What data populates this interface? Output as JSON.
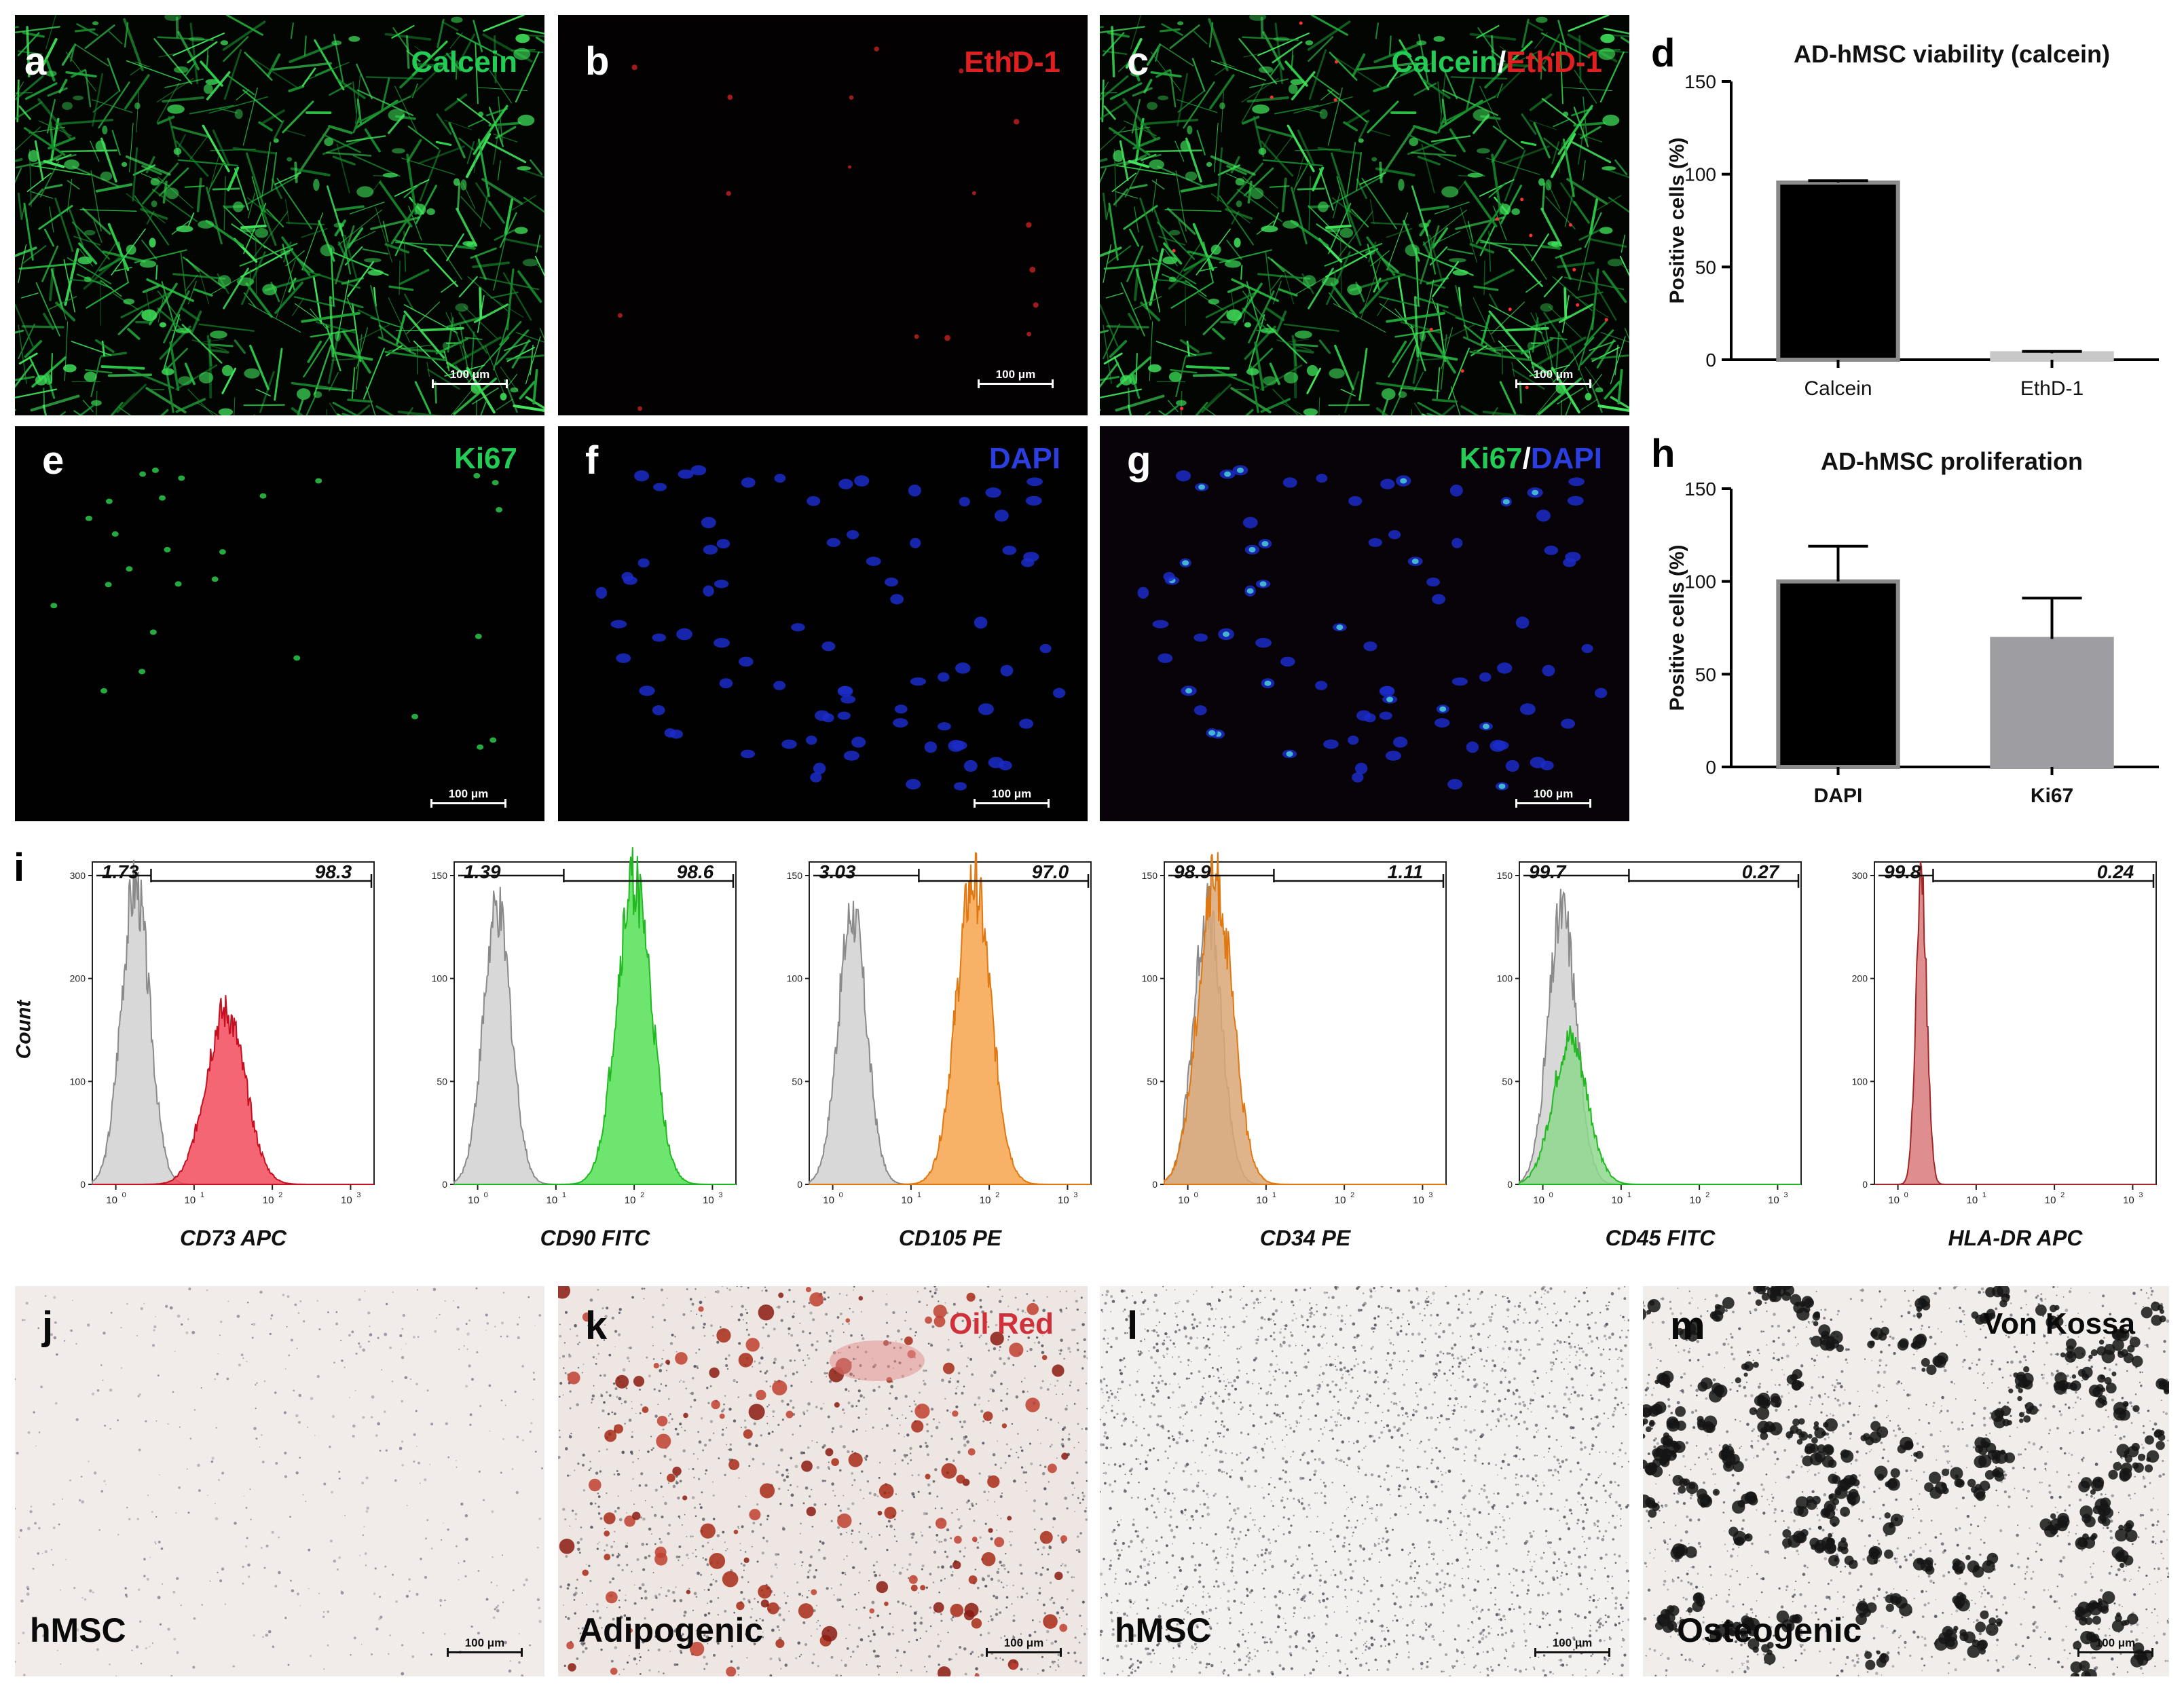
{
  "panels": {
    "a": {
      "letter": "a",
      "stain": [
        {
          "text": "Calcein",
          "color": "#22cc55"
        }
      ],
      "scale": "100 μm"
    },
    "b": {
      "letter": "b",
      "stain": [
        {
          "text": "EthD-1",
          "color": "#e02020"
        }
      ],
      "scale": "100 μm"
    },
    "c": {
      "letter": "c",
      "stain": [
        {
          "text": "Calcein",
          "color": "#22cc55"
        },
        {
          "text": "/",
          "color": "#ffffff"
        },
        {
          "text": "EthD-1",
          "color": "#e02020"
        }
      ],
      "scale": "100 μm"
    },
    "e": {
      "letter": "e",
      "stain": [
        {
          "text": "Ki67",
          "color": "#22cc55"
        }
      ],
      "scale": "100 μm"
    },
    "f": {
      "letter": "f",
      "stain": [
        {
          "text": "DAPI",
          "color": "#2b3fe0"
        }
      ],
      "scale": "100 μm"
    },
    "g": {
      "letter": "g",
      "stain": [
        {
          "text": "Ki67",
          "color": "#22cc55"
        },
        {
          "text": "/",
          "color": "#ffffff"
        },
        {
          "text": "DAPI",
          "color": "#2b3fe0"
        }
      ],
      "scale": "100 μm"
    },
    "j": {
      "letter": "j",
      "sample": "hMSC",
      "scale": "100 μm"
    },
    "k": {
      "letter": "k",
      "sample": "Adipogenic",
      "stain": "Oil Red",
      "stain_color": "#d0303a",
      "scale": "100 μm"
    },
    "l": {
      "letter": "l",
      "sample": "hMSC",
      "scale": "100 μm"
    },
    "m": {
      "letter": "m",
      "sample": "Osteogenic",
      "stain": "Von Kossa",
      "stain_color": "#0a0a0a",
      "scale": "100 μm"
    }
  },
  "chart_data": [
    {
      "panel": "d",
      "type": "bar",
      "title": "AD-hMSC viability (calcein)",
      "ylabel": "Positive cells (%)",
      "xlabel": "",
      "ylim": [
        0,
        150
      ],
      "yticks": [
        0,
        50,
        100,
        150
      ],
      "categories": [
        "Calcein",
        "EthD-1"
      ],
      "values": [
        95.5,
        3.5
      ],
      "errors": [
        1,
        1
      ],
      "colors": [
        "#000000",
        "#c8c8c8"
      ],
      "grid": false
    },
    {
      "panel": "h",
      "type": "bar",
      "title": "AD-hMSC proliferation",
      "ylabel": "Positive cells (%)",
      "xlabel": "",
      "ylim": [
        0,
        150
      ],
      "yticks": [
        0,
        50,
        100,
        150
      ],
      "categories": [
        "DAPI",
        "Ki67"
      ],
      "values": [
        100,
        69
      ],
      "errors": [
        19,
        22
      ],
      "colors": [
        "#000000",
        "#9e9ea2"
      ],
      "grid": false
    }
  ],
  "flow": {
    "letter": "i",
    "ylabel": "Count",
    "plots": [
      {
        "marker": "CD73 APC",
        "neg": "1.73",
        "pos": "98.3",
        "ymax": 300,
        "yticks": [
          "0",
          "100",
          "200",
          "300"
        ],
        "color": "#f24b5a",
        "stroke": "#c41020",
        "peak": 1.4,
        "gate": 0.45
      },
      {
        "marker": "CD90 FITC",
        "neg": "1.39",
        "pos": "98.6",
        "ymax": 150,
        "yticks": [
          "0",
          "50",
          "100",
          "150"
        ],
        "color": "#55e055",
        "stroke": "#22b822",
        "peak": 2.0,
        "gate": 1.1
      },
      {
        "marker": "CD105 PE",
        "neg": "3.03",
        "pos": "97.0",
        "ymax": 150,
        "yticks": [
          "0",
          "50",
          "100",
          "150"
        ],
        "color": "#f6a44e",
        "stroke": "#e07812",
        "peak": 1.8,
        "gate": 1.1
      },
      {
        "marker": "CD34 PE",
        "neg": "98.9",
        "pos": "1.11",
        "ymax": 150,
        "yticks": [
          "0",
          "50",
          "100",
          "150"
        ],
        "color": "#dba775",
        "stroke": "#e07812",
        "peak": 0.35,
        "gate": 1.1
      },
      {
        "marker": "CD45 FITC",
        "neg": "99.7",
        "pos": "0.27",
        "ymax": 150,
        "yticks": [
          "0",
          "50",
          "100",
          "150"
        ],
        "color": "#8ed88e",
        "stroke": "#22b822",
        "peak": 0.35,
        "gate": 1.1
      },
      {
        "marker": "HLA-DR APC",
        "neg": "99.8",
        "pos": "0.24",
        "ymax": 300,
        "yticks": [
          "0",
          "100",
          "200",
          "300"
        ],
        "color": "#d87a7a",
        "stroke": "#a02828",
        "peak": 0.3,
        "gate": 0.45
      }
    ],
    "xticks": [
      "10",
      "10",
      "10",
      "10"
    ],
    "xexp": [
      "0",
      "1",
      "2",
      "3"
    ]
  }
}
